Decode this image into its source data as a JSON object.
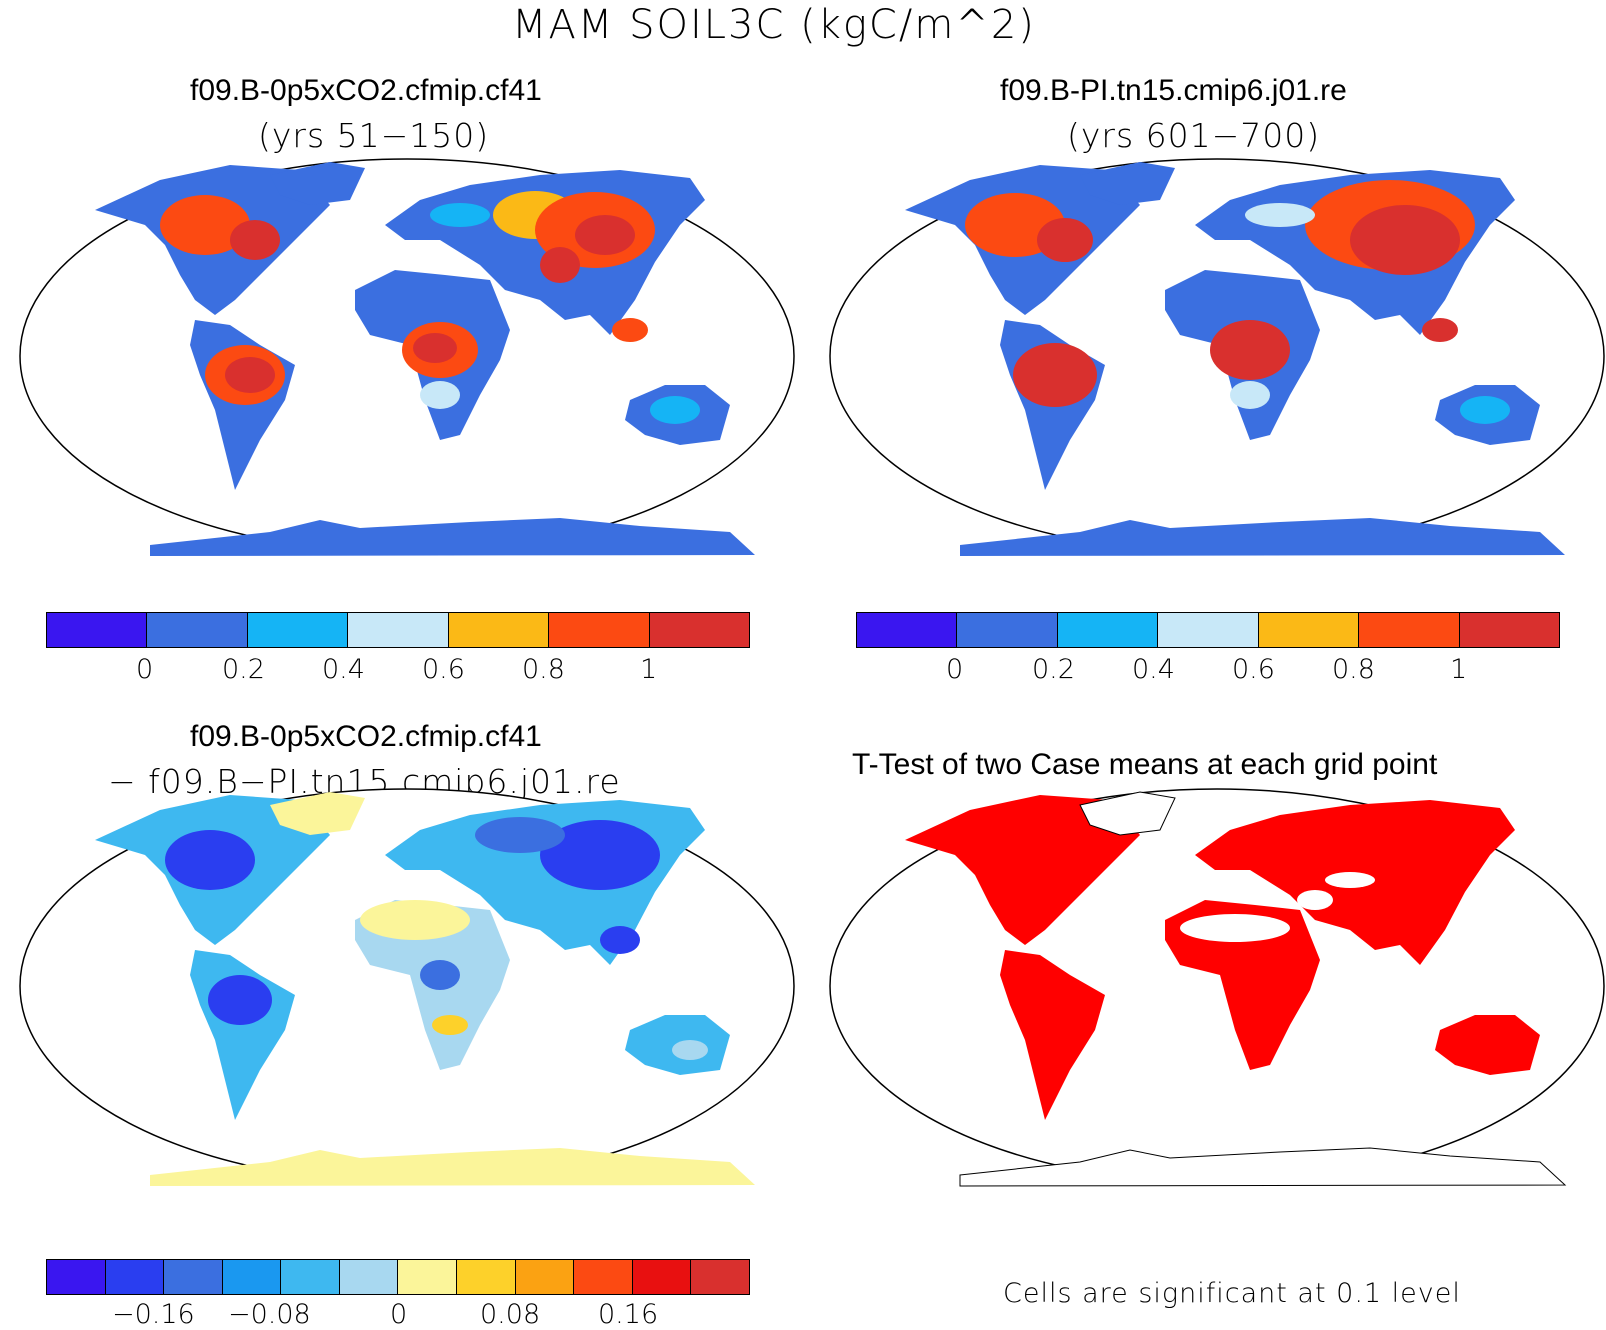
{
  "figure": {
    "title": "MAM SOIL3C (kgC/m^2)"
  },
  "panels": [
    {
      "case": "f09.B-0p5xCO2.cfmip.cf41",
      "subtitle": "(yrs 51−150)"
    },
    {
      "case": "f09.B-PI.tn15.cmip6.j01.re",
      "subtitle": "(yrs 601−700)"
    },
    {
      "case": "f09.B-0p5xCO2.cfmip.cf41",
      "subtitle": "− f09.B−PI.tn15.cmip6.j01.re"
    },
    {
      "case": "T-Test of two Case means at each grid point",
      "note": "Cells are significant at 0.1 level"
    }
  ],
  "colorbars": {
    "abs": {
      "colors": [
        "#3a16f0",
        "#3b6fe0",
        "#15b4f5",
        "#c8e8f8",
        "#fbb916",
        "#fc4a12",
        "#d9302e"
      ],
      "ticks": [
        "0",
        "0.2",
        "0.4",
        "0.6",
        "0.8",
        "1"
      ]
    },
    "diff": {
      "colors": [
        "#3a16f0",
        "#2a3ef0",
        "#3b6fe0",
        "#1a98f0",
        "#3eb8f0",
        "#a8d8f0",
        "#fbf59a",
        "#fdd12a",
        "#fba212",
        "#fc4a12",
        "#e81010",
        "#d9302e"
      ],
      "ticks": [
        "−0.16",
        "−0.08",
        "0",
        "0.08",
        "0.16"
      ]
    }
  },
  "map_colors": {
    "sig": "#ff0000",
    "nonsig": "#ffffff",
    "ocean": "#ffffff"
  }
}
